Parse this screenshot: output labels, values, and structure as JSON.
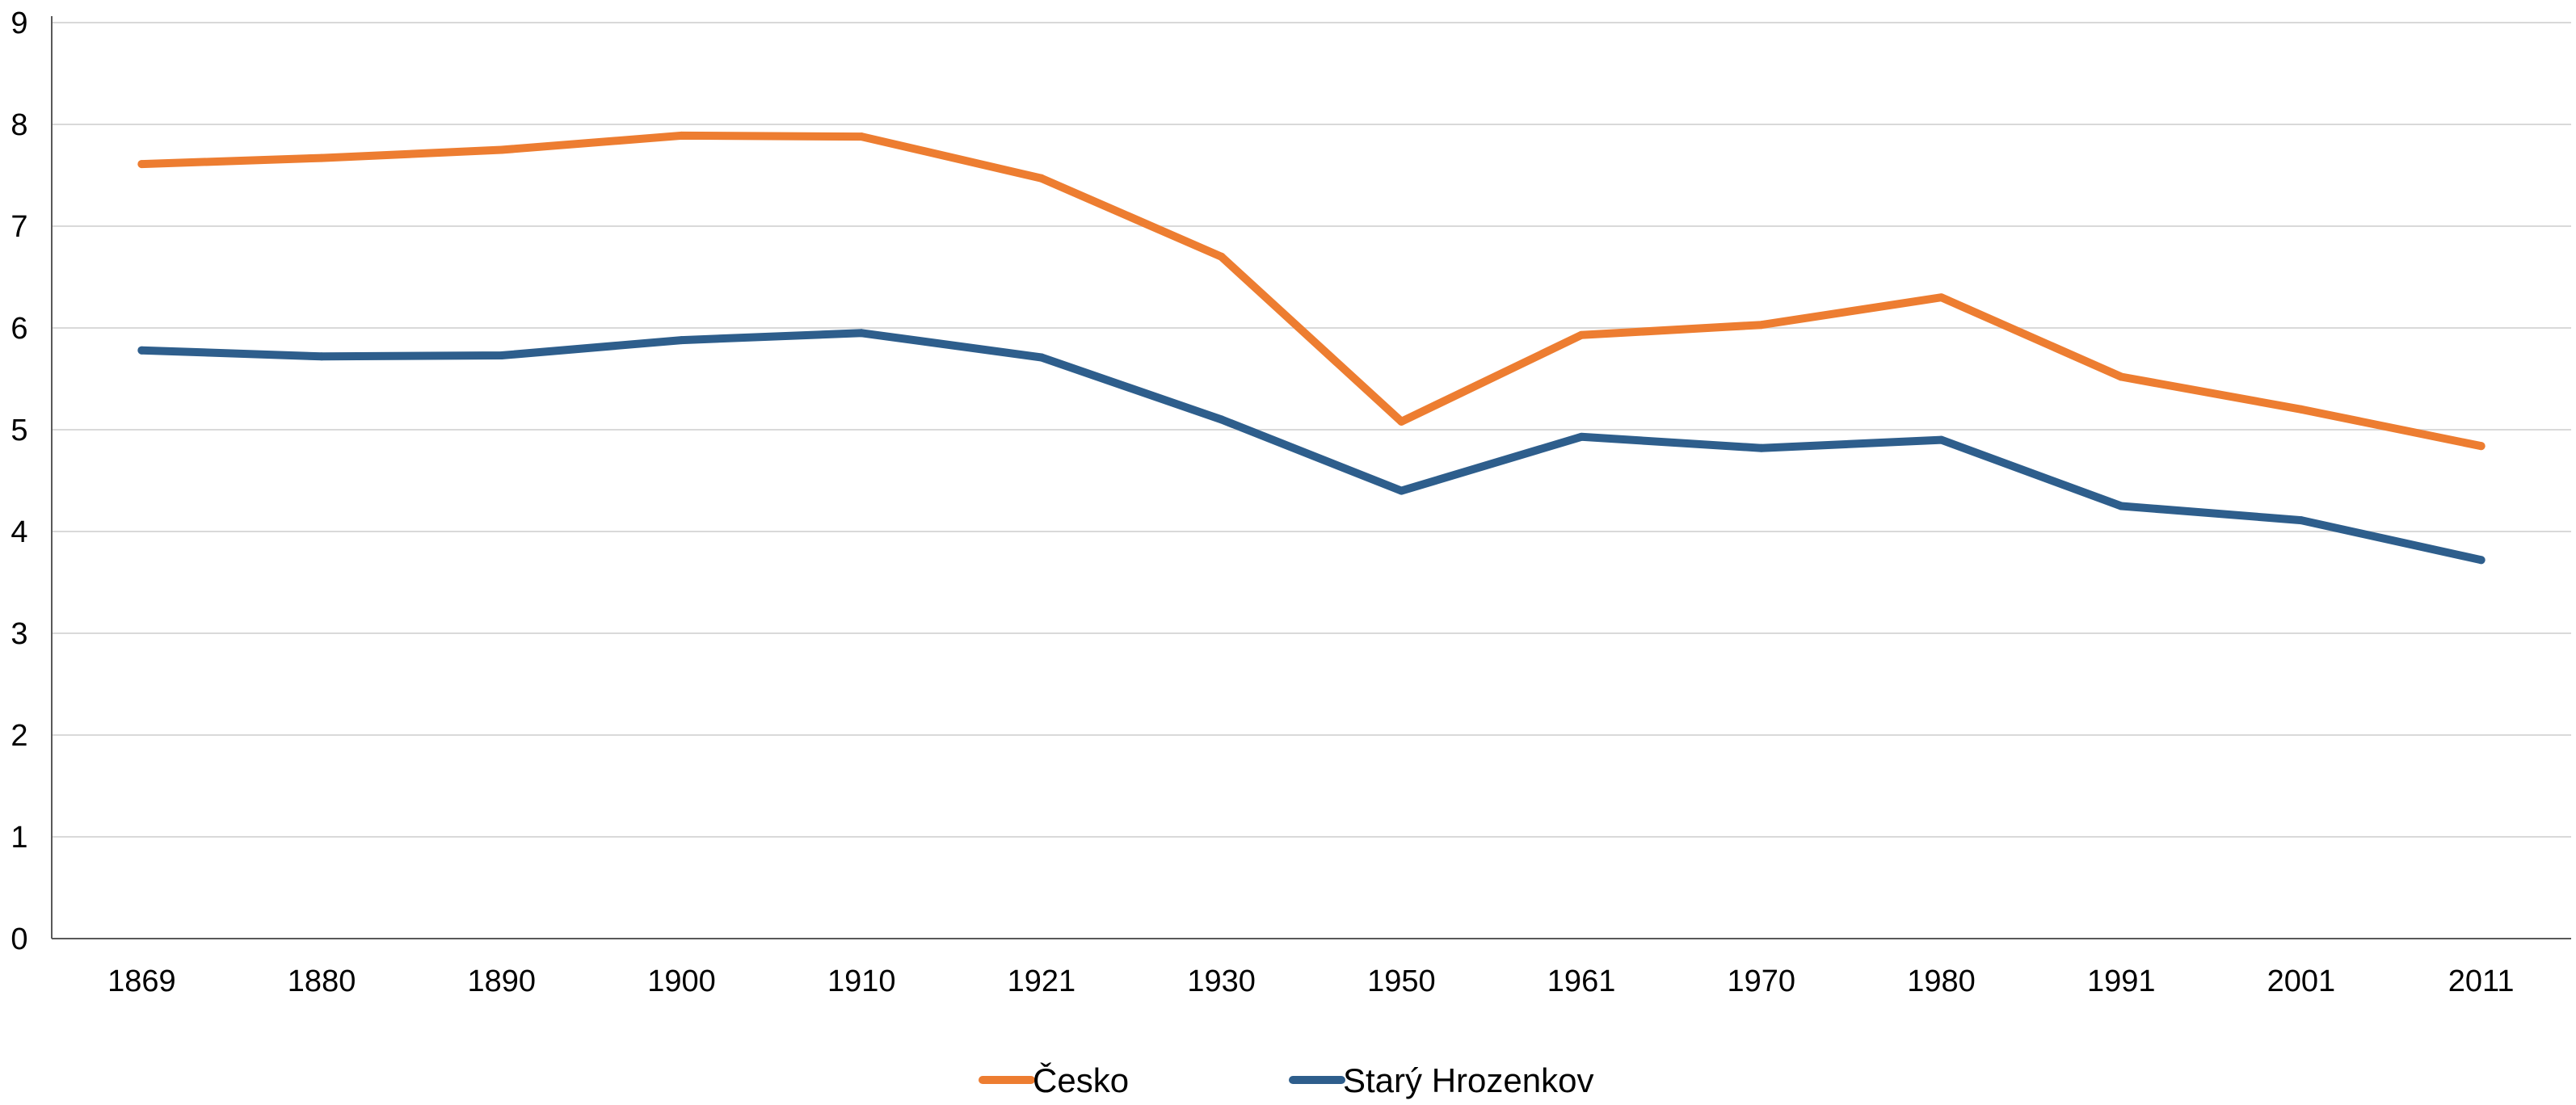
{
  "chart_data": {
    "type": "line",
    "title": "",
    "xlabel": "",
    "ylabel": "",
    "categories": [
      "1869",
      "1880",
      "1890",
      "1900",
      "1910",
      "1921",
      "1930",
      "1950",
      "1961",
      "1970",
      "1980",
      "1991",
      "2001",
      "2011"
    ],
    "y_ticks": [
      "0",
      "1",
      "2",
      "3",
      "4",
      "5",
      "6",
      "7",
      "8",
      "9"
    ],
    "ylim": [
      0,
      9
    ],
    "grid": true,
    "legend_position": "bottom",
    "series": [
      {
        "name": "Česko",
        "color": "#ED7D31",
        "values": [
          7.61,
          7.67,
          7.75,
          7.89,
          7.88,
          7.47,
          6.7,
          5.08,
          5.93,
          6.03,
          6.3,
          5.52,
          5.2,
          4.84
        ]
      },
      {
        "name": "Starý Hrozenkov",
        "color": "#2E5E8C",
        "values": [
          5.78,
          5.72,
          5.73,
          5.88,
          5.95,
          5.71,
          5.1,
          4.4,
          4.93,
          4.82,
          4.9,
          4.25,
          4.11,
          3.72
        ]
      }
    ]
  }
}
